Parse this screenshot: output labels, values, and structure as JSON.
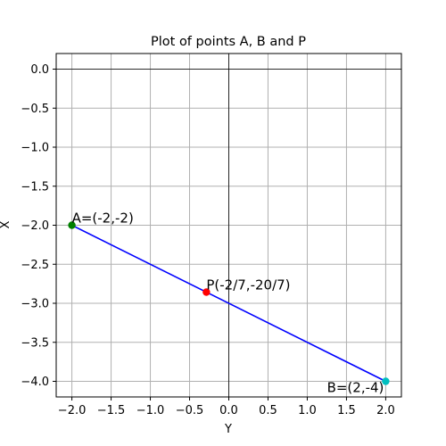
{
  "chart_data": {
    "type": "scatter",
    "title": "Plot of points A, B and P",
    "xlabel": "Y",
    "ylabel": "X",
    "xlim": [
      -2.2,
      2.2
    ],
    "ylim": [
      -4.2,
      0.2
    ],
    "grid": true,
    "x_ticks": [
      -2.0,
      -1.5,
      -1.0,
      -0.5,
      0.0,
      0.5,
      1.0,
      1.5,
      2.0
    ],
    "y_ticks": [
      0.0,
      -0.5,
      -1.0,
      -1.5,
      -2.0,
      -2.5,
      -3.0,
      -3.5,
      -4.0
    ],
    "x_tick_labels": [
      "−2.0",
      "−1.5",
      "−1.0",
      "−0.5",
      "0.0",
      "0.5",
      "1.0",
      "1.5",
      "2.0"
    ],
    "y_tick_labels": [
      "0.0",
      "−0.5",
      "−1.0",
      "−1.5",
      "−2.0",
      "−2.5",
      "−3.0",
      "−3.5",
      "−4.0"
    ],
    "reference_lines": {
      "x": 0,
      "y": 0,
      "color": "#000000"
    },
    "line": {
      "x": [
        -2,
        2
      ],
      "y": [
        -2,
        -4
      ],
      "color": "#0000ff"
    },
    "points": [
      {
        "label": "A=(-2,-2)",
        "x": -2,
        "y": -2,
        "color": "#008000"
      },
      {
        "label": "B=(2,-4)",
        "x": 2,
        "y": -4,
        "color": "#00bfbf"
      },
      {
        "label": "P(-2/7,-20/7)",
        "x": -0.2857,
        "y": -2.8571,
        "color": "#ff0000"
      }
    ]
  }
}
